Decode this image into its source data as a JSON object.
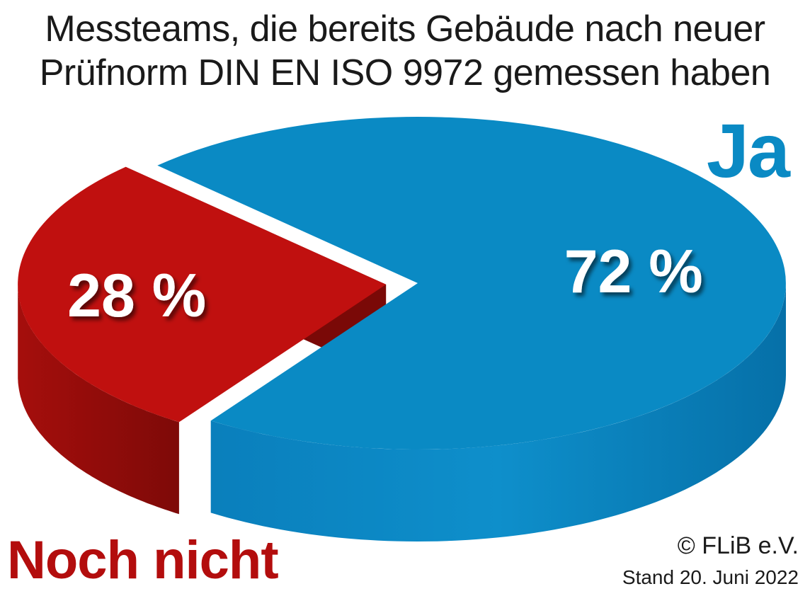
{
  "chart_data": {
    "type": "pie",
    "title_lines": [
      "Messteams, die bereits Gebäude nach neuer",
      "Prüfnorm DIN EN ISO 9972 gemessen haben"
    ],
    "series": [
      {
        "name": "Ja",
        "value": 72,
        "label": "72 %",
        "color": "#0a8ac4",
        "side_color": "#0670a8"
      },
      {
        "name": "Noch nicht",
        "value": 28,
        "label": "28 %",
        "color": "#c0100f",
        "side_color": "#8e0c0a"
      }
    ],
    "style": "3d-exploded"
  },
  "legend": {
    "ja": "Ja",
    "noch_nicht": "Noch nicht"
  },
  "footer": {
    "credit": "© FLiB e.V.",
    "stand": "Stand 20. Juni 2022"
  }
}
